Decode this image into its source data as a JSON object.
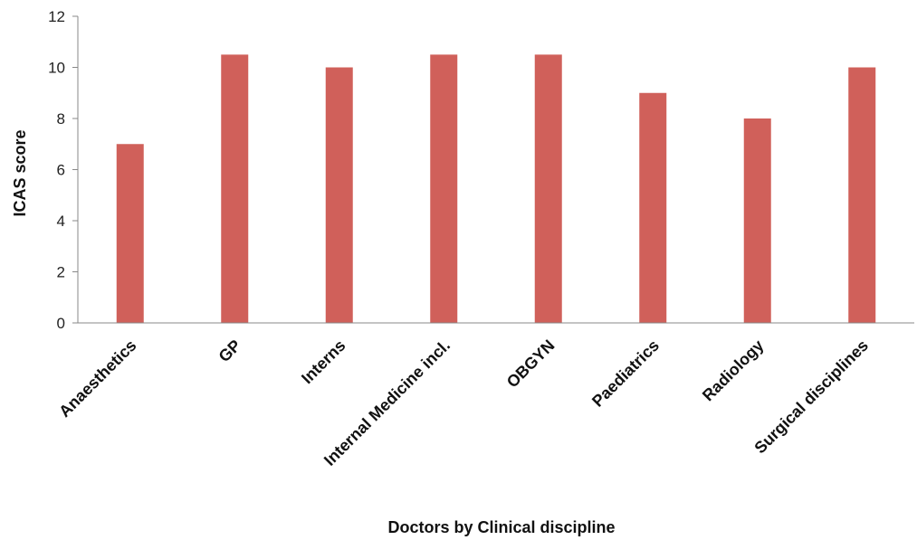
{
  "chart_data": {
    "type": "bar",
    "categories": [
      "Anaesthetics",
      "GP",
      "Interns",
      "Internal Medicine incl.",
      "OBGYN",
      "Paediatrics",
      "Radiology",
      "Surgical disciplines"
    ],
    "values": [
      7,
      10.5,
      10,
      10.5,
      10.5,
      9,
      8,
      10
    ],
    "title": "",
    "xlabel": "Doctors by Clinical discipline",
    "ylabel": "ICAS score",
    "ylim": [
      0,
      12
    ],
    "yticks": [
      "0",
      "2",
      "4",
      "6",
      "8",
      "10",
      "12"
    ],
    "grid": false,
    "bar_color": "#D0605A",
    "legend": "none"
  }
}
